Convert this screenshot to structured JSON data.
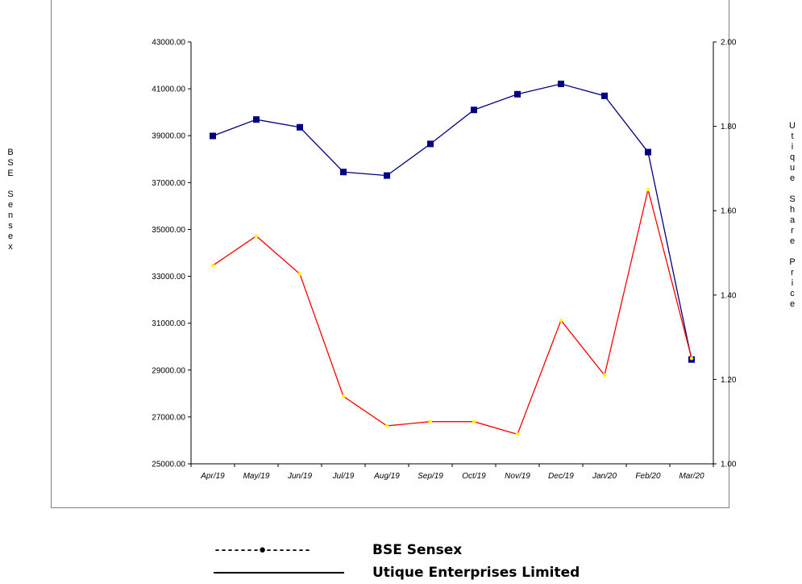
{
  "chart_data": {
    "type": "line",
    "categories": [
      "Apr/19",
      "May/19",
      "Jun/19",
      "Jul/19",
      "Aug/19",
      "Sep/19",
      "Oct/19",
      "Nov/19",
      "Dec/19",
      "Jan/20",
      "Feb/20",
      "Mar/20"
    ],
    "series": [
      {
        "name": "BSE Sensex",
        "axis": "left",
        "color": "#000080",
        "marker": "square",
        "values": [
          38990,
          39690,
          39360,
          37450,
          37300,
          38650,
          40100,
          40770,
          41210,
          40700,
          38300,
          29450
        ]
      },
      {
        "name": "Utique Enterprises Limited",
        "axis": "right",
        "color": "#ff0000",
        "marker": "dot",
        "marker_color": "#ffff00",
        "values": [
          1.47,
          1.54,
          1.45,
          1.16,
          1.09,
          1.1,
          1.1,
          1.07,
          1.34,
          1.21,
          1.65,
          1.25
        ]
      }
    ],
    "left_axis": {
      "label": "BSE Sensex",
      "ylim": [
        25000,
        43000
      ],
      "ticks": [
        "43000.00",
        "41000.00",
        "39000.00",
        "37000.00",
        "35000.00",
        "33000.00",
        "31000.00",
        "29000.00",
        "27000.00",
        "25000.00"
      ],
      "tick_values": [
        43000,
        41000,
        39000,
        37000,
        35000,
        33000,
        31000,
        29000,
        27000,
        25000
      ]
    },
    "right_axis": {
      "label": "Utique Share Price",
      "ylim": [
        1.0,
        2.0
      ],
      "ticks": [
        "2.00",
        "1.80",
        "1.60",
        "1.40",
        "1.20",
        "1.00"
      ],
      "tick_values": [
        2.0,
        1.8,
        1.6,
        1.4,
        1.2,
        1.0
      ]
    },
    "grid": false,
    "legend_position": "bottom"
  },
  "legend": {
    "items": [
      {
        "symbol": "-------●-------",
        "label": "BSE Sensex"
      },
      {
        "symbol": "",
        "label": "Utique Enterprises Limited"
      }
    ]
  }
}
